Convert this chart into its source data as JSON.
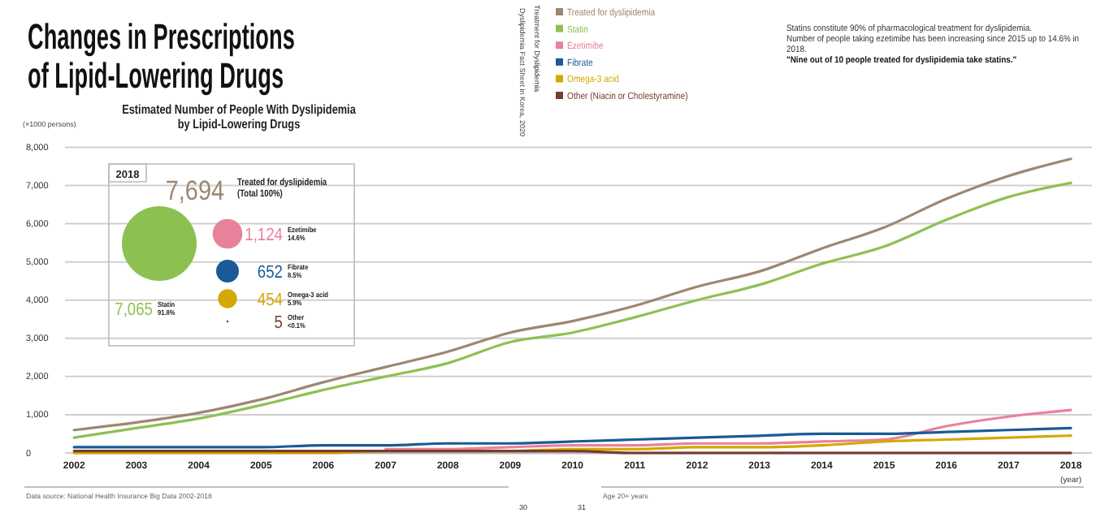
{
  "chart_data": [
    {
      "type": "line",
      "title": "Changes in Prescriptions of Lipid-Lowering Drugs",
      "subtitle": "Estimated Number of People With Dyslipidemia by Lipid-Lowering Drugs",
      "ylabel": "(×1000 persons)",
      "xlabel": "(year)",
      "legend_title": "Treatment for Dyslipidemia",
      "x": [
        2002,
        2003,
        2004,
        2005,
        2006,
        2007,
        2008,
        2009,
        2010,
        2011,
        2012,
        2013,
        2014,
        2015,
        2016,
        2017,
        2018
      ],
      "series": [
        {
          "name": "Treated for dyslipidemia",
          "color": "#9c8770",
          "values": [
            600,
            800,
            1050,
            1400,
            1850,
            2250,
            2650,
            3150,
            3450,
            3850,
            4350,
            4750,
            5350,
            5900,
            6650,
            7250,
            7694
          ]
        },
        {
          "name": "Statin",
          "color": "#8cc152",
          "values": [
            400,
            650,
            900,
            1250,
            1650,
            2000,
            2350,
            2900,
            3150,
            3550,
            4000,
            4400,
            4950,
            5400,
            6100,
            6700,
            7065
          ]
        },
        {
          "name": "Ezetimibe",
          "color": "#e8829a",
          "values": [
            null,
            null,
            null,
            null,
            null,
            100,
            100,
            150,
            200,
            200,
            250,
            250,
            300,
            350,
            700,
            950,
            1124
          ]
        },
        {
          "name": "Fibrate",
          "color": "#1a5a96",
          "values": [
            150,
            150,
            150,
            150,
            200,
            200,
            250,
            250,
            300,
            350,
            400,
            450,
            500,
            500,
            550,
            600,
            652
          ]
        },
        {
          "name": "Omega-3 acid",
          "color": "#d4a800",
          "values": [
            0,
            0,
            0,
            0,
            0,
            50,
            50,
            50,
            100,
            100,
            150,
            150,
            200,
            300,
            350,
            400,
            454
          ]
        },
        {
          "name": "Other (Niacin or Cholestyramine)",
          "color": "#7a3b2e",
          "values": [
            50,
            50,
            50,
            50,
            50,
            50,
            50,
            50,
            50,
            0,
            0,
            0,
            0,
            0,
            0,
            0,
            0
          ]
        }
      ],
      "xlim": [
        2002,
        2018
      ],
      "xticks": [
        2002,
        2003,
        2004,
        2005,
        2006,
        2007,
        2008,
        2009,
        2010,
        2011,
        2012,
        2013,
        2014,
        2015,
        2016,
        2017,
        2018
      ],
      "ylim": [
        0,
        8000
      ],
      "yticks": [
        {
          "value": 0,
          "label": "0"
        },
        {
          "value": 1000,
          "label": "1,000"
        },
        {
          "value": 2000,
          "label": "2,000"
        },
        {
          "value": 3000,
          "label": "3,000"
        },
        {
          "value": 4000,
          "label": "4,000"
        },
        {
          "value": 5000,
          "label": "5,000"
        },
        {
          "value": 6000,
          "label": "6,000"
        },
        {
          "value": 7000,
          "label": "7,000"
        },
        {
          "value": 8000,
          "label": "8,000"
        }
      ],
      "grid": "y",
      "legend": "top",
      "marker": "none",
      "line_style": "solid",
      "annotations": [
        "Dyslipidemia Fact Sheet in Korea, 2020",
        "Statins constitute 90% of pharmacological treatment for dyslipidemia.",
        "Number of people taking ezetimibe has been increasing since 2015 up to 14.6% in 2018.",
        "\"Nine out of 10 people treated for dyslipidemia take statins.\"",
        "Data source: National Health Insurance Big Data 2002-2018",
        "Age 20+ years",
        "30",
        "31"
      ]
    },
    {
      "type": "other",
      "title": "Treated for dyslipidemia",
      "subtitle": "(Total 100%)",
      "categories": [
        "Statin",
        "Ezetimibe",
        "Fibrate",
        "Omega-3 acid",
        "Other"
      ],
      "values": [
        7065,
        1124,
        652,
        454,
        5
      ],
      "colors": [
        "#8cc152",
        "#e8829a",
        "#1a5a96",
        "#d4a800",
        "#7a3b2e"
      ],
      "value_labels": [
        "7,065",
        "1,124",
        "652",
        "454",
        "5"
      ],
      "annotations": [
        "2018",
        "7,694",
        "91.8%",
        "14.6%",
        "8.5%",
        "5.9%",
        "<0.1%"
      ]
    }
  ]
}
